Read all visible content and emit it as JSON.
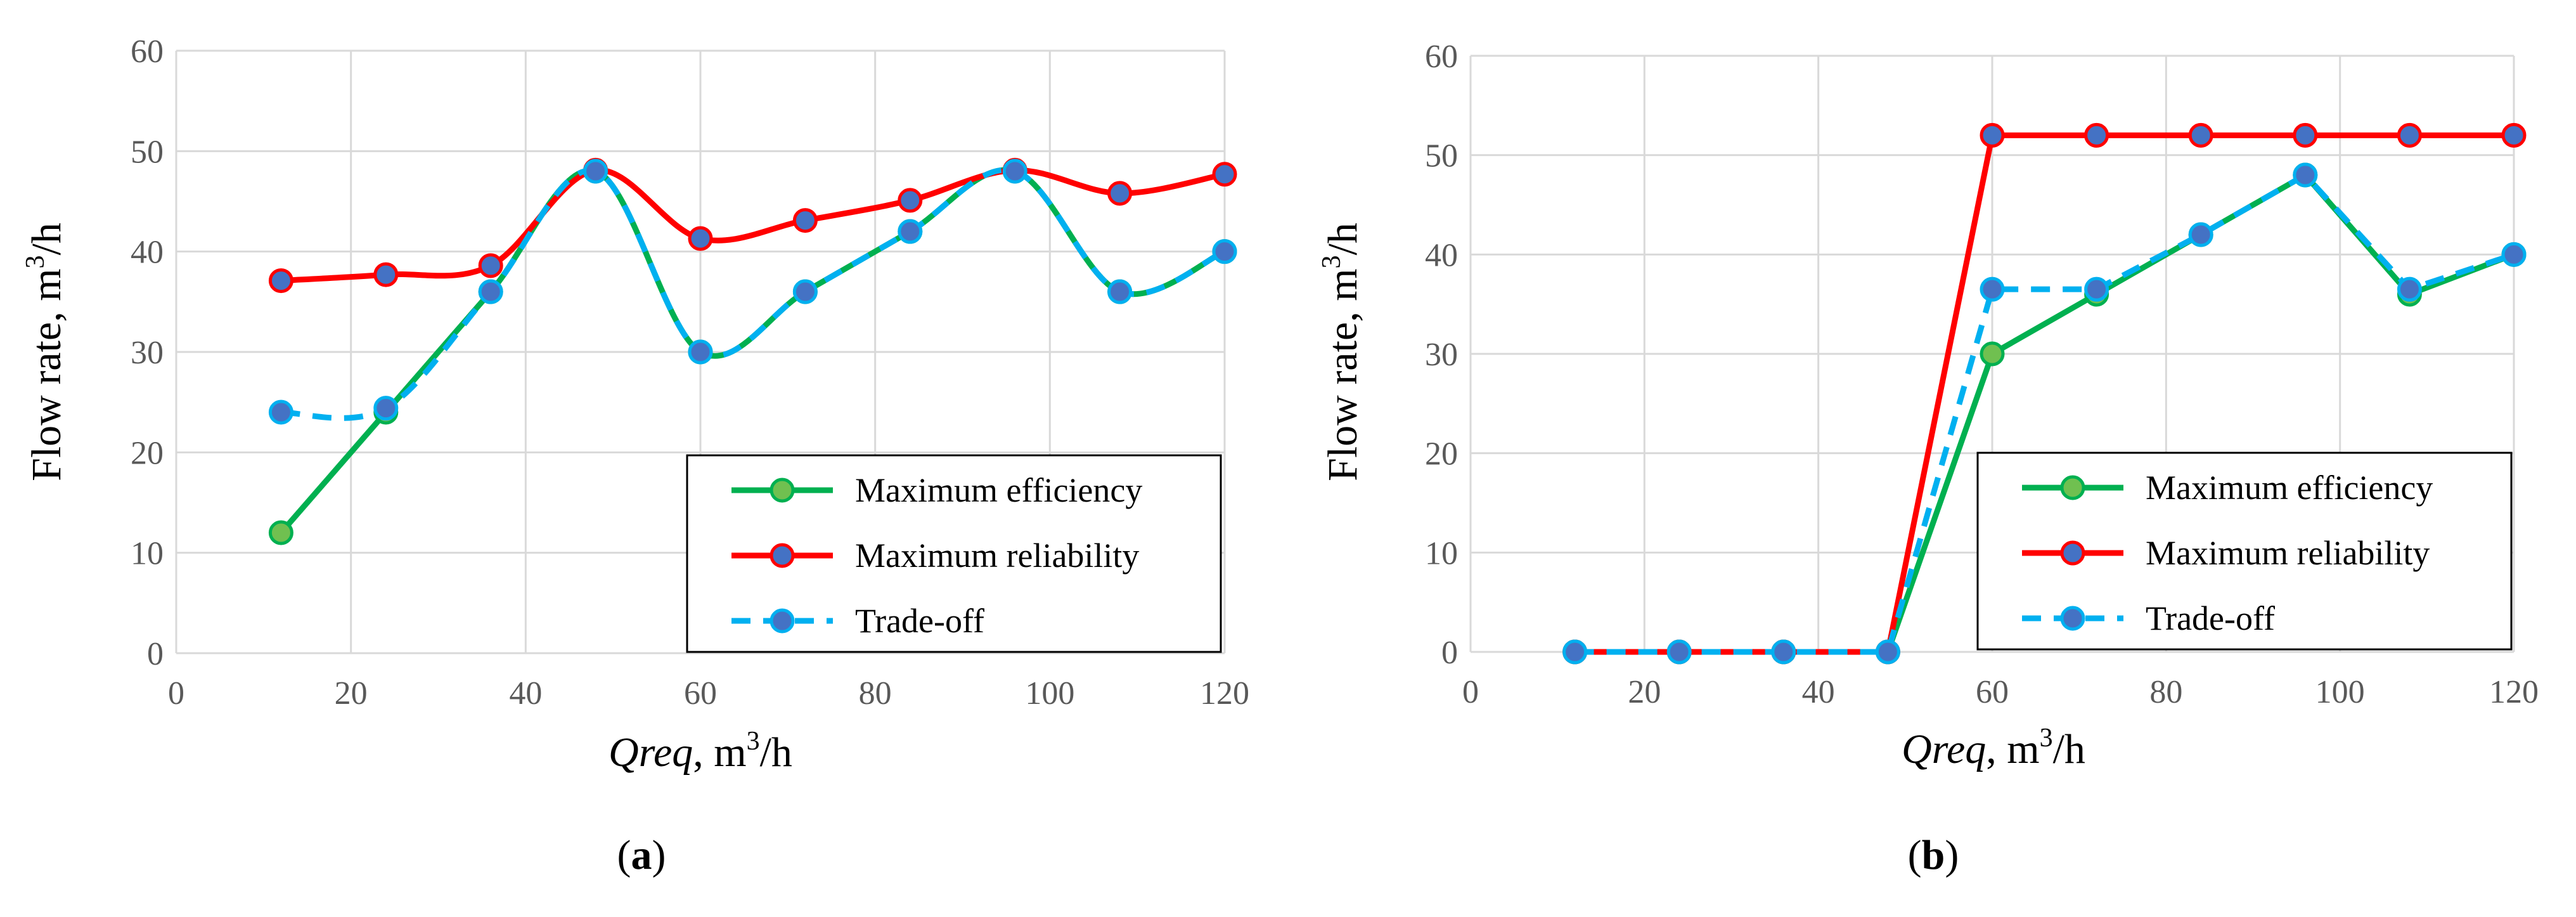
{
  "colors": {
    "max_efficiency": "#00b050",
    "max_efficiency_marker": "#70c050",
    "max_reliability": "#ff0000",
    "trade_off": "#00b0f0",
    "marker_fill": "#4472c4"
  },
  "chart_data": [
    {
      "type": "line",
      "panel_label": "a",
      "xlabel_main": "Qreq",
      "xlabel_unit": ", m",
      "xlabel_sup": "3",
      "xlabel_tail": "/h",
      "ylabel_main": "Flow rate, m",
      "ylabel_sup": "3",
      "ylabel_tail": "/h",
      "xlim": [
        0,
        120
      ],
      "ylim": [
        0,
        60
      ],
      "x_ticks": [
        "0",
        "20",
        "40",
        "60",
        "80",
        "100",
        "120"
      ],
      "y_ticks": [
        "0",
        "10",
        "20",
        "30",
        "40",
        "50",
        "60"
      ],
      "smooth": true,
      "grid": true,
      "legend_position": "bottom-right",
      "x": [
        12,
        24,
        36,
        48,
        60,
        72,
        84,
        96,
        108,
        120
      ],
      "series": [
        {
          "name": "Maximum efficiency",
          "style": "solid",
          "color_key": "max_efficiency",
          "marker_key": "max_efficiency_marker",
          "values": [
            12,
            24,
            36,
            48,
            30,
            36,
            42,
            48,
            36,
            40
          ]
        },
        {
          "name": "Maximum reliability",
          "style": "solid",
          "color_key": "max_reliability",
          "marker_key": "marker_fill",
          "values": [
            37.1,
            37.7,
            38.6,
            48.1,
            41.3,
            43.1,
            45.1,
            48.1,
            45.8,
            47.7
          ]
        },
        {
          "name": "Trade-off",
          "style": "dashed",
          "color_key": "trade_off",
          "marker_key": "marker_fill",
          "values": [
            24,
            24.4,
            36,
            48,
            30,
            36,
            42,
            48,
            36,
            40
          ]
        }
      ]
    },
    {
      "type": "line",
      "panel_label": "b",
      "xlabel_main": "Qreq",
      "xlabel_unit": ", m",
      "xlabel_sup": "3",
      "xlabel_tail": "/h",
      "ylabel_main": "Flow rate, m",
      "ylabel_sup": "3",
      "ylabel_tail": "/h",
      "xlim": [
        0,
        120
      ],
      "ylim": [
        0,
        60
      ],
      "x_ticks": [
        "0",
        "20",
        "40",
        "60",
        "80",
        "100",
        "120"
      ],
      "y_ticks": [
        "0",
        "10",
        "20",
        "30",
        "40",
        "50",
        "60"
      ],
      "smooth": false,
      "grid": true,
      "legend_position": "bottom-right",
      "x": [
        12,
        24,
        36,
        48,
        60,
        72,
        84,
        96,
        108,
        120
      ],
      "series": [
        {
          "name": "Maximum efficiency",
          "style": "solid",
          "color_key": "max_efficiency",
          "marker_key": "max_efficiency_marker",
          "values": [
            0,
            0,
            0,
            0,
            30,
            36,
            42,
            48,
            36,
            40
          ]
        },
        {
          "name": "Maximum reliability",
          "style": "solid",
          "color_key": "max_reliability",
          "marker_key": "marker_fill",
          "values": [
            0,
            0,
            0,
            0,
            52,
            52,
            52,
            52,
            52,
            52
          ]
        },
        {
          "name": "Trade-off",
          "style": "dashed",
          "color_key": "trade_off",
          "marker_key": "marker_fill",
          "values": [
            0,
            0,
            0,
            0,
            36.5,
            36.5,
            42,
            48,
            36.5,
            40
          ]
        }
      ]
    }
  ]
}
